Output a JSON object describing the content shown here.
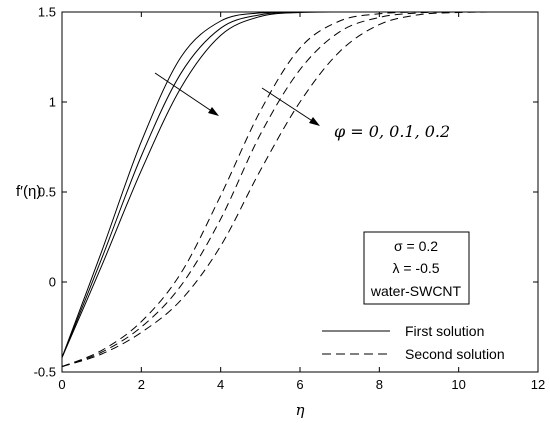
{
  "chart_data": {
    "type": "line",
    "title": "",
    "xlabel": "η",
    "ylabel": "f′(η)",
    "xlim": [
      0,
      12
    ],
    "ylim": [
      -0.5,
      1.5
    ],
    "x_ticks": [
      "0",
      "2",
      "4",
      "6",
      "8",
      "10",
      "12"
    ],
    "y_ticks": [
      "-0.5",
      "0",
      "0.5",
      "1",
      "1.5"
    ],
    "grid": false,
    "series": [
      {
        "name": "First solution",
        "style": "solid",
        "curves": [
          {
            "phi": 0,
            "x": [
              0,
              1,
              2,
              3,
              4,
              5,
              6,
              7
            ],
            "y": [
              -0.42,
              0.17,
              0.78,
              1.25,
              1.45,
              1.495,
              1.5,
              1.5
            ]
          },
          {
            "phi": 0.1,
            "x": [
              0,
              1,
              2,
              3,
              4,
              5,
              6,
              7,
              8
            ],
            "y": [
              -0.42,
              0.13,
              0.7,
              1.16,
              1.41,
              1.485,
              1.5,
              1.5,
              1.5
            ]
          },
          {
            "phi": 0.2,
            "x": [
              0,
              1,
              2,
              3,
              4,
              5,
              6,
              7,
              8,
              9,
              10,
              11
            ],
            "y": [
              -0.42,
              0.09,
              0.62,
              1.08,
              1.37,
              1.475,
              1.497,
              1.5,
              1.5,
              1.5,
              1.5,
              1.5
            ]
          }
        ]
      },
      {
        "name": "Second solution",
        "style": "dashed",
        "curves": [
          {
            "phi": 0,
            "x": [
              0,
              1,
              2,
              3,
              4,
              5,
              6,
              7,
              8,
              9,
              10
            ],
            "y": [
              -0.47,
              -0.38,
              -0.22,
              0.05,
              0.48,
              0.95,
              1.3,
              1.45,
              1.49,
              1.5,
              1.5
            ]
          },
          {
            "phi": 0.1,
            "x": [
              0,
              1,
              2,
              3,
              4,
              5,
              6,
              7,
              8,
              9,
              10,
              11
            ],
            "y": [
              -0.47,
              -0.39,
              -0.25,
              -0.02,
              0.35,
              0.82,
              1.18,
              1.39,
              1.47,
              1.495,
              1.5,
              1.5
            ]
          },
          {
            "phi": 0.2,
            "x": [
              0,
              1,
              2,
              3,
              4,
              5,
              6,
              7,
              8,
              9,
              10,
              11,
              12
            ],
            "y": [
              -0.47,
              -0.4,
              -0.28,
              -0.1,
              0.2,
              0.62,
              1.0,
              1.28,
              1.43,
              1.485,
              1.497,
              1.5,
              1.5
            ]
          }
        ]
      }
    ],
    "legend": {
      "placement": "bottom-right",
      "entries": [
        "First solution",
        "Second solution"
      ]
    },
    "parameters_box": [
      "σ = 0.2",
      "λ = -0.5",
      "water-SWCNT"
    ],
    "annotation": "φ = 0, 0.1, 0.2"
  }
}
